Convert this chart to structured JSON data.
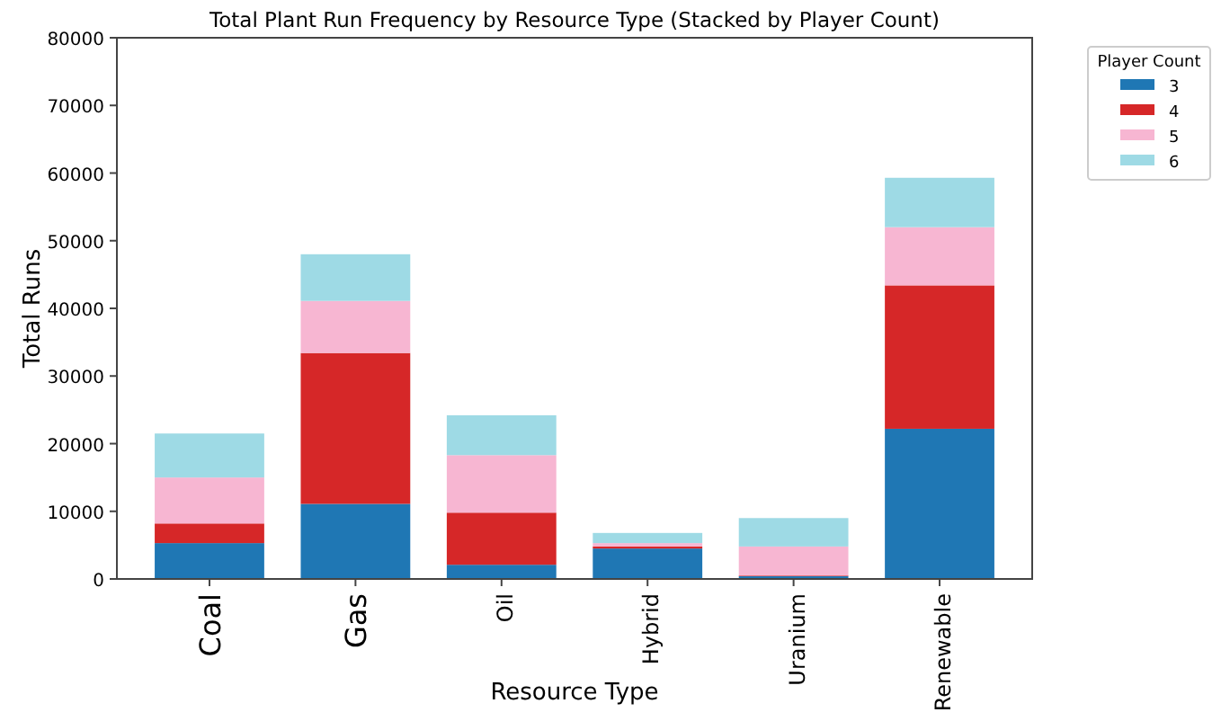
{
  "chart_data": {
    "type": "bar",
    "stacked": true,
    "title": "Total Plant Run Frequency by Resource Type (Stacked by Player Count)",
    "xlabel": "Resource Type",
    "ylabel": "Total Runs",
    "legend_title": "Player Count",
    "legend": "top right",
    "categories": [
      "Coal",
      "Gas",
      "Oil",
      "Hybrid",
      "Uranium",
      "Renewable"
    ],
    "series": [
      {
        "name": "3",
        "color": "#1f77b4",
        "values": [
          5300,
          11100,
          2100,
          4500,
          400,
          22200
        ]
      },
      {
        "name": "4",
        "color": "#d62728",
        "values": [
          2900,
          22300,
          7700,
          300,
          100,
          21200
        ]
      },
      {
        "name": "5",
        "color": "#f7b6d2",
        "values": [
          6800,
          7700,
          8500,
          500,
          4300,
          8600
        ]
      },
      {
        "name": "6",
        "color": "#9edae5",
        "values": [
          6500,
          6900,
          5900,
          1500,
          4200,
          7300
        ]
      }
    ],
    "ylim": [
      0,
      80000
    ],
    "yticks": [
      0,
      10000,
      20000,
      30000,
      40000,
      50000,
      60000,
      70000,
      80000
    ]
  }
}
